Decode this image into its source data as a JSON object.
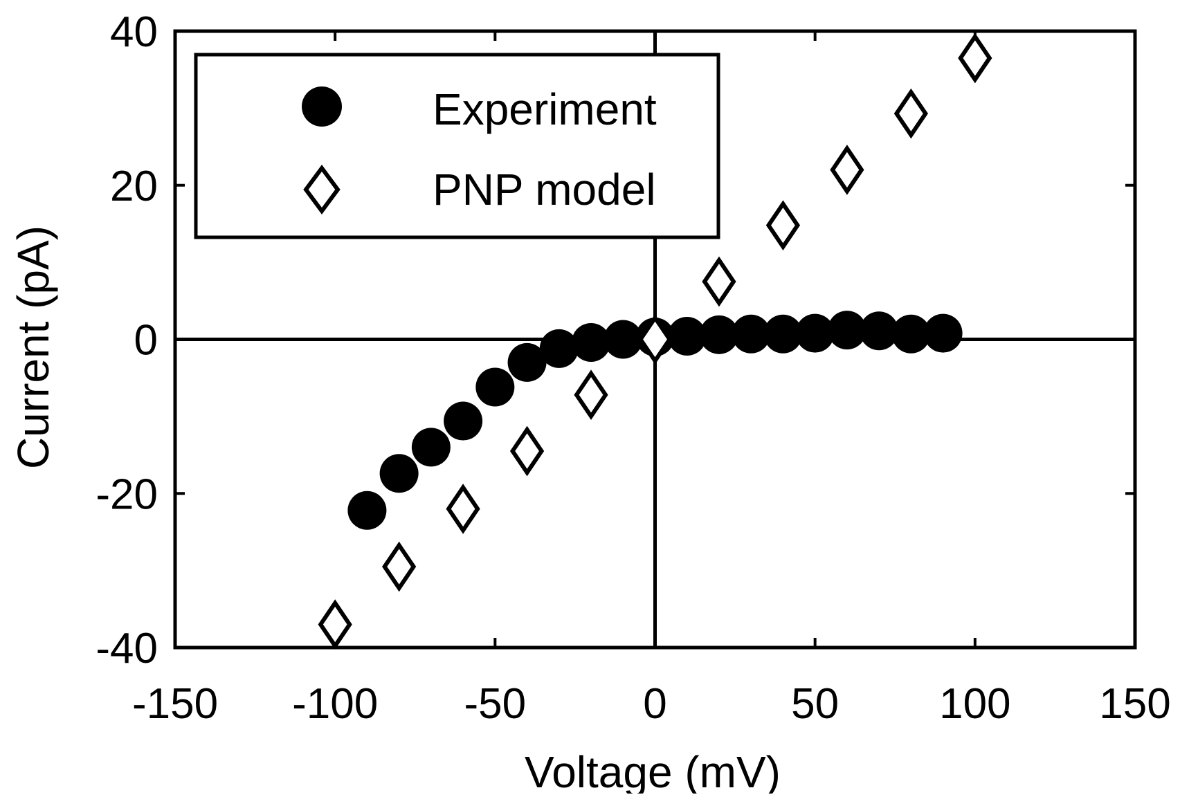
{
  "chart_data": {
    "type": "scatter",
    "title": "",
    "xlabel": "Voltage (mV)",
    "ylabel": "Current (pA)",
    "xlim": [
      -150,
      150
    ],
    "ylim": [
      -40,
      40
    ],
    "xticks": [
      -150,
      -100,
      -50,
      0,
      50,
      100,
      150
    ],
    "yticks": [
      -40,
      -20,
      0,
      20,
      40
    ],
    "xtick_labels": [
      "-150",
      "-100",
      "-50",
      "0",
      "50",
      "100",
      "150"
    ],
    "ytick_labels": [
      "-40",
      "-20",
      "0",
      "20",
      "40"
    ],
    "zero_lines": true,
    "grid": false,
    "legend_position": "top-left",
    "series": [
      {
        "name": "Experiment",
        "marker": "filled-circle",
        "color": "#000000",
        "points": [
          {
            "x": -90,
            "y": -22.2
          },
          {
            "x": -80,
            "y": -17.4
          },
          {
            "x": -70,
            "y": -14.0
          },
          {
            "x": -60,
            "y": -10.6
          },
          {
            "x": -50,
            "y": -6.2
          },
          {
            "x": -40,
            "y": -3.0
          },
          {
            "x": -30,
            "y": -1.2
          },
          {
            "x": -20,
            "y": -0.4
          },
          {
            "x": -10,
            "y": 0.0
          },
          {
            "x": 0,
            "y": 0.3
          },
          {
            "x": 10,
            "y": 0.4
          },
          {
            "x": 20,
            "y": 0.6
          },
          {
            "x": 30,
            "y": 0.7
          },
          {
            "x": 40,
            "y": 0.7
          },
          {
            "x": 50,
            "y": 0.8
          },
          {
            "x": 60,
            "y": 1.2
          },
          {
            "x": 70,
            "y": 1.1
          },
          {
            "x": 80,
            "y": 0.7
          },
          {
            "x": 90,
            "y": 0.8
          }
        ]
      },
      {
        "name": "PNP model",
        "marker": "open-diamond",
        "color": "#000000",
        "points": [
          {
            "x": -100,
            "y": -37.0
          },
          {
            "x": -80,
            "y": -29.5
          },
          {
            "x": -60,
            "y": -22.0
          },
          {
            "x": -40,
            "y": -14.5
          },
          {
            "x": -20,
            "y": -7.2
          },
          {
            "x": 0,
            "y": 0.0
          },
          {
            "x": 20,
            "y": 7.5
          },
          {
            "x": 40,
            "y": 14.8
          },
          {
            "x": 60,
            "y": 22.0
          },
          {
            "x": 80,
            "y": 29.3
          },
          {
            "x": 100,
            "y": 36.5
          }
        ]
      }
    ]
  }
}
